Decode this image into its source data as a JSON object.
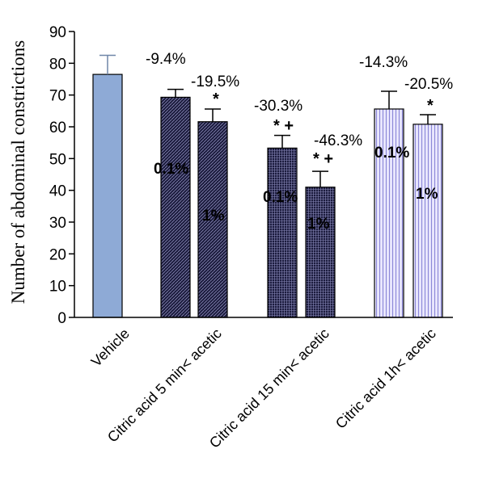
{
  "chart_data": {
    "type": "bar",
    "ylabel": "Number of abdominal constrictions",
    "ylim": [
      0,
      90
    ],
    "yticks": [
      "0",
      "10",
      "20",
      "30",
      "40",
      "50",
      "60",
      "70",
      "80",
      "90"
    ],
    "categories": [
      "Vehicle",
      "Citric acid  5 min< acetic",
      "Citric acid 15 min< acetic",
      "Citric acid 1h< acetic"
    ],
    "bars": [
      {
        "group": 0,
        "value": 76.5,
        "error": 6.0,
        "pct": "",
        "conc": "",
        "sig": "",
        "fill": "solid-blue"
      },
      {
        "group": 1,
        "value": 69.3,
        "error": 2.5,
        "pct": "-9.4%",
        "conc": "0.1%",
        "sig": "",
        "fill": "dark-hatch"
      },
      {
        "group": 1,
        "value": 61.6,
        "error": 4.0,
        "pct": "-19.5%",
        "conc": "1%",
        "sig": "*",
        "fill": "dark-hatch"
      },
      {
        "group": 2,
        "value": 53.3,
        "error": 4.0,
        "pct": "-30.3%",
        "conc": "0.1%",
        "sig": "*+",
        "fill": "dark-grid"
      },
      {
        "group": 2,
        "value": 41.0,
        "error": 5.0,
        "pct": "-46.3%",
        "conc": "1%",
        "sig": "*+",
        "fill": "dark-grid"
      },
      {
        "group": 3,
        "value": 65.6,
        "error": 5.6,
        "pct": "-14.3%",
        "conc": "0.1%",
        "sig": "",
        "fill": "light-stripe"
      },
      {
        "group": 3,
        "value": 60.8,
        "error": 3.0,
        "pct": "-20.5%",
        "conc": "1%",
        "sig": "*",
        "fill": "light-stripe"
      }
    ],
    "colors": {
      "vehicle": "#8eaad6",
      "dark": "#1c1c3e",
      "stripe_bg": "#eceaff",
      "stripe_line": "#8c88d8"
    }
  }
}
